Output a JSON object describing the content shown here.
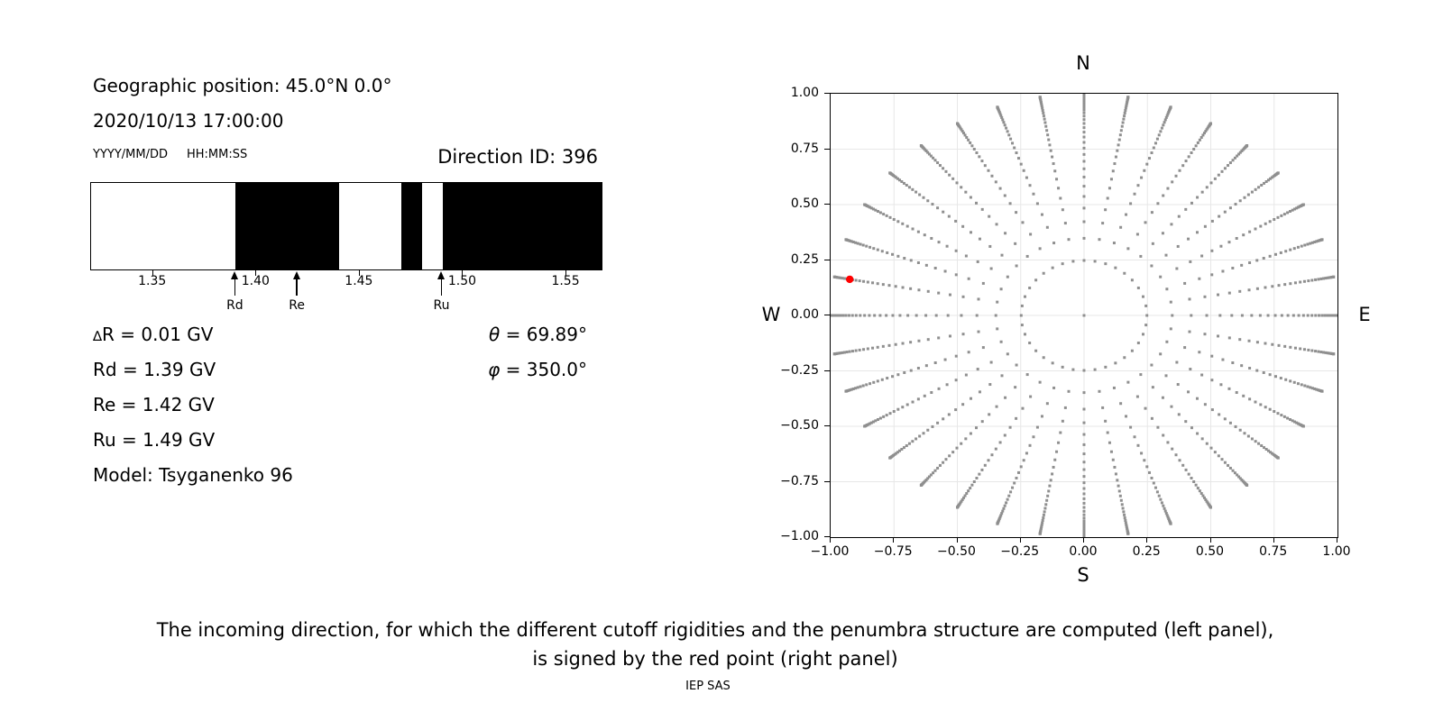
{
  "page": {
    "background": "#ffffff"
  },
  "left_panel": {
    "geo": "Geographic position: 45.0°N 0.0°",
    "datetime": "2020/10/13 17:00:00",
    "date_format": "YYYY/MM/DD",
    "time_format": "HH:MM:SS",
    "direction_id": "Direction ID: 396",
    "delta_symbol": "∆",
    "delta_rest": "R = 0.01 GV",
    "rd": "Rd = 1.39 GV",
    "re": "Re = 1.42 GV",
    "ru": "Ru = 1.49 GV",
    "model": "Model: Tsyganenko 96",
    "theta_symbol": "θ",
    "theta_rest": " = 69.89°",
    "phi_symbol": "φ",
    "phi_rest": " = 350.0°"
  },
  "right_panel": {
    "north": "N",
    "south": "S",
    "west": "W",
    "east": "E"
  },
  "caption": {
    "line1": "The incoming direction, for which the different cutoff rigidities and the penumbra structure are computed (left panel),",
    "line2": "is signed by the red point (right panel)",
    "credit": "IEP SAS"
  },
  "chart_data": [
    {
      "type": "bar",
      "description": "Penumbra structure: black bands = rigidity intervals between Rd and Ru, white = allowed windows",
      "x_range_gv": [
        1.32,
        1.567
      ],
      "x_ticks": [
        1.35,
        1.4,
        1.45,
        1.5,
        1.55
      ],
      "x_tick_labels": [
        "1.35",
        "1.40",
        "1.45",
        "1.50",
        "1.55"
      ],
      "black_bands_gv": [
        [
          1.39,
          1.44
        ],
        [
          1.47,
          1.48
        ],
        [
          1.49,
          1.567
        ]
      ],
      "band_color": "#000000",
      "arrows": [
        {
          "label": "Rd",
          "x_gv": 1.39
        },
        {
          "label": "Re",
          "x_gv": 1.42
        },
        {
          "label": "Ru",
          "x_gv": 1.49
        }
      ]
    },
    {
      "type": "scatter",
      "description": "Grid of incoming directions on unit circle; N up, E right, S down, W left",
      "xlim": [
        -1,
        1
      ],
      "ylim": [
        -1,
        1
      ],
      "x_ticks": [
        -1,
        -0.75,
        -0.5,
        -0.25,
        0,
        0.25,
        0.5,
        0.75,
        1
      ],
      "x_tick_labels": [
        "−1.00",
        "−0.75",
        "−0.50",
        "−0.25",
        "0.00",
        "0.25",
        "0.50",
        "0.75",
        "1.00"
      ],
      "y_ticks": [
        1,
        0.75,
        0.5,
        0.25,
        0,
        -0.25,
        -0.5,
        -0.75,
        -1
      ],
      "y_tick_labels": [
        "1.00",
        "0.75",
        "0.50",
        "0.25",
        "0.00",
        "−0.25",
        "−0.50",
        "−0.75",
        "−1.00"
      ],
      "grid": true,
      "grid_color": "#e7e7e7",
      "dot_color": "#8f8f8f",
      "dot_size_px": 3,
      "direction_grid": {
        "azimuth_start_deg": 0,
        "azimuth_step_deg": 10,
        "azimuth_count": 36,
        "cos_zenith_divisions": 32,
        "includes_center_point": true,
        "mapping": "x = -sin(zenith)*cos(azimuth); y = -sin(zenith)*sin(azimuth); radius_k = sqrt(1-(k/32)^2), k=0..31"
      },
      "selected_direction": {
        "x": -0.9246,
        "y": 0.163,
        "theta_deg": 69.89,
        "phi_deg": 350.0,
        "color": "#ff0000",
        "radius_px": 4.2
      }
    }
  ]
}
